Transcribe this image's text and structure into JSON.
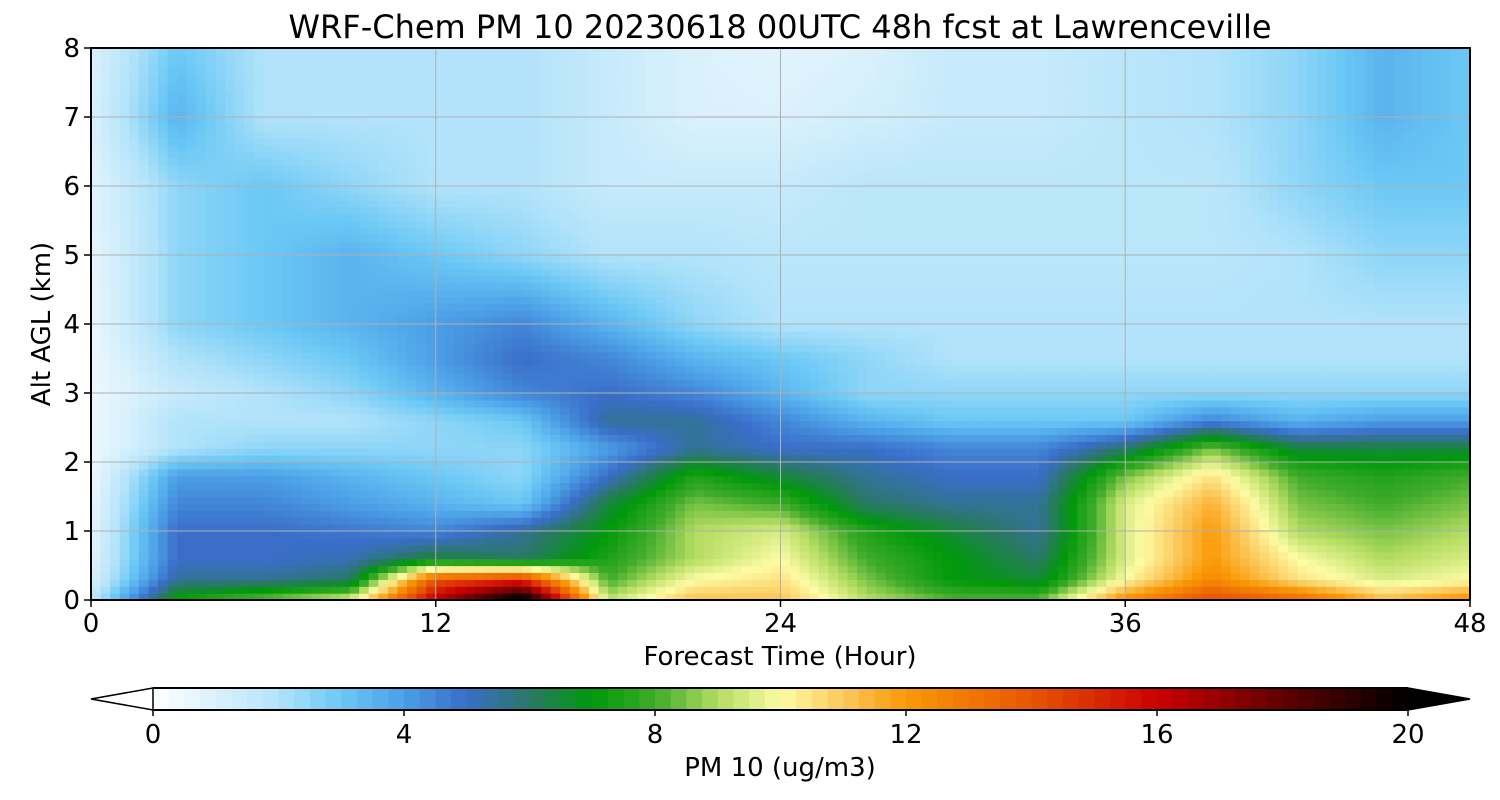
{
  "chart_data": {
    "type": "heatmap",
    "title": "WRF-Chem PM 10  20230618 00UTC 48h fcst at Lawrenceville",
    "xlabel": "Forecast Time (Hour)",
    "ylabel": "Alt AGL (km)",
    "xlim": [
      0,
      48
    ],
    "ylim": [
      0,
      8
    ],
    "x_ticks": [
      0,
      12,
      24,
      36,
      48
    ],
    "y_ticks": [
      0,
      1,
      2,
      3,
      4,
      5,
      6,
      7,
      8
    ],
    "grid": true,
    "x": [
      0,
      3,
      6,
      9,
      12,
      15,
      18,
      21,
      24,
      27,
      30,
      33,
      36,
      39,
      42,
      45,
      48
    ],
    "y": [
      0.05,
      0.3,
      0.6,
      1.0,
      1.4,
      1.8,
      2.2,
      2.6,
      3.0,
      3.5,
      4.0,
      5.0,
      6.0,
      7.0,
      8.0
    ],
    "z": [
      [
        1.5,
        7,
        8,
        9,
        16,
        20,
        9,
        11,
        11,
        9,
        8,
        8,
        12,
        14,
        13,
        11,
        12
      ],
      [
        1.0,
        5.5,
        5.5,
        6,
        14,
        15,
        8,
        10,
        10.5,
        8.5,
        7,
        6.5,
        10,
        12.5,
        10.5,
        9.5,
        10
      ],
      [
        0.8,
        5,
        5,
        5.2,
        6.5,
        6,
        7.5,
        9,
        10,
        8,
        7,
        6,
        9.5,
        12,
        10,
        9,
        9.5
      ],
      [
        0.7,
        5,
        5,
        4.8,
        4.5,
        5.5,
        7,
        9,
        9.5,
        7.5,
        6.5,
        5.5,
        9.5,
        12,
        9,
        8.5,
        9
      ],
      [
        0.6,
        4.5,
        4.5,
        4,
        3.5,
        3,
        6.5,
        8.5,
        8,
        6,
        5.5,
        5.5,
        9.5,
        11.5,
        8.5,
        8,
        8.5
      ],
      [
        0.5,
        4,
        4,
        3.5,
        3,
        2.5,
        5,
        7.5,
        6.5,
        5.5,
        5,
        5,
        8.5,
        10.5,
        8,
        7.5,
        8
      ],
      [
        0.5,
        2,
        2.5,
        2.5,
        2.5,
        2.5,
        4,
        5.5,
        5,
        5,
        4.5,
        4.5,
        6,
        8.5,
        6.5,
        6.5,
        6.5
      ],
      [
        0.5,
        2,
        2,
        2,
        2.5,
        3,
        5.5,
        5.5,
        4.5,
        3.5,
        3,
        3,
        3,
        4.5,
        3.5,
        4,
        4
      ],
      [
        0.5,
        1.5,
        2,
        2.5,
        3.5,
        4.5,
        5,
        4.5,
        3.5,
        2.5,
        2.5,
        2.5,
        2.5,
        2.5,
        2.5,
        2.5,
        2.5
      ],
      [
        0.5,
        2,
        2.5,
        3,
        4,
        5,
        4.5,
        3.5,
        3,
        2.5,
        2,
        2,
        2,
        2,
        2,
        2,
        2
      ],
      [
        0.6,
        2.5,
        3,
        3.5,
        4,
        4.5,
        3.5,
        2.5,
        2,
        2,
        2,
        2,
        2,
        2,
        2,
        2,
        2
      ],
      [
        0.7,
        2.5,
        3,
        3.5,
        3,
        2.5,
        2,
        2,
        1.8,
        1.8,
        1.8,
        1.8,
        1.8,
        1.8,
        2,
        2.5,
        2.5
      ],
      [
        0.8,
        2.5,
        3,
        2.5,
        2,
        2,
        1.5,
        1.5,
        1.5,
        1.8,
        1.8,
        1.8,
        1.8,
        1.8,
        2.5,
        3,
        3
      ],
      [
        1.0,
        3.5,
        2,
        2,
        2,
        2,
        1.5,
        1,
        1,
        1.2,
        1.5,
        1.5,
        1.8,
        2,
        2.5,
        3.5,
        3
      ],
      [
        1.0,
        3,
        2,
        2,
        2,
        2,
        1.5,
        1,
        0.8,
        1,
        1.5,
        1.5,
        1.8,
        2,
        2.5,
        3.5,
        3
      ]
    ],
    "colorbar": {
      "label": "PM 10  (ug/m3)",
      "ticks": [
        0,
        4,
        8,
        12,
        16,
        20
      ],
      "range": [
        0,
        20
      ],
      "extend": "both",
      "orientation": "horizontal",
      "stops": [
        {
          "v": 0,
          "c": "#ffffff"
        },
        {
          "v": 1,
          "c": "#daf1fc"
        },
        {
          "v": 2,
          "c": "#b2e3fa"
        },
        {
          "v": 3,
          "c": "#6bc8f5"
        },
        {
          "v": 4,
          "c": "#4b9ee6"
        },
        {
          "v": 5,
          "c": "#3a6ec8"
        },
        {
          "v": 6,
          "c": "#2a7866"
        },
        {
          "v": 7,
          "c": "#00990a"
        },
        {
          "v": 8,
          "c": "#3fab2a"
        },
        {
          "v": 9,
          "c": "#b3dc62"
        },
        {
          "v": 10,
          "c": "#fdfca5"
        },
        {
          "v": 11,
          "c": "#fbc95c"
        },
        {
          "v": 12,
          "c": "#fa9906"
        },
        {
          "v": 14,
          "c": "#e85502"
        },
        {
          "v": 16,
          "c": "#cb0000"
        },
        {
          "v": 18,
          "c": "#600000"
        },
        {
          "v": 20,
          "c": "#000000"
        }
      ]
    }
  }
}
